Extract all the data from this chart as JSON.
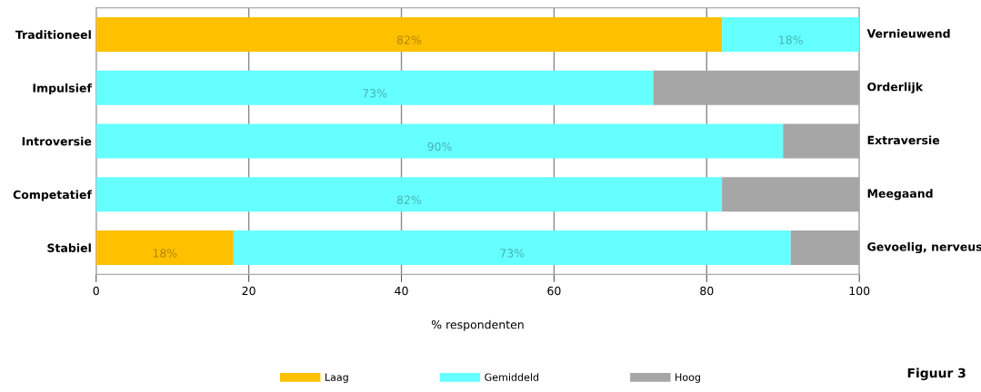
{
  "chart_data": {
    "type": "bar",
    "orientation": "horizontal",
    "stacked": true,
    "categories": [
      "Traditioneel",
      "Impulsief",
      "Introversie",
      "Competatief",
      "Stabiel"
    ],
    "series": [
      {
        "name": "Laag",
        "color": "#ffc000",
        "values": [
          82,
          0,
          0,
          0,
          18
        ],
        "value_labels": [
          "82%",
          null,
          null,
          null,
          "18%"
        ]
      },
      {
        "name": "Gemiddeld",
        "color": "#66ffff",
        "values": [
          18,
          73,
          90,
          82,
          73
        ],
        "value_labels": [
          "18%",
          "73%",
          "90%",
          "82%",
          "73%"
        ]
      },
      {
        "name": "Hoog",
        "color": "#a6a6a6",
        "values": [
          0,
          27,
          10,
          18,
          9
        ],
        "value_labels": [
          null,
          null,
          null,
          null,
          null
        ]
      }
    ],
    "xlim": [
      0,
      100
    ],
    "xticks": [
      0,
      20,
      40,
      60,
      80,
      100
    ],
    "xlabel": "% respondenten",
    "grid": "x",
    "legend": "bottom",
    "annotations": [
      "Vernieuwend",
      "Orderlijk",
      "Extraversie",
      "Meegaand",
      "Gevoelig, nerveus",
      "Figuur 3"
    ]
  }
}
